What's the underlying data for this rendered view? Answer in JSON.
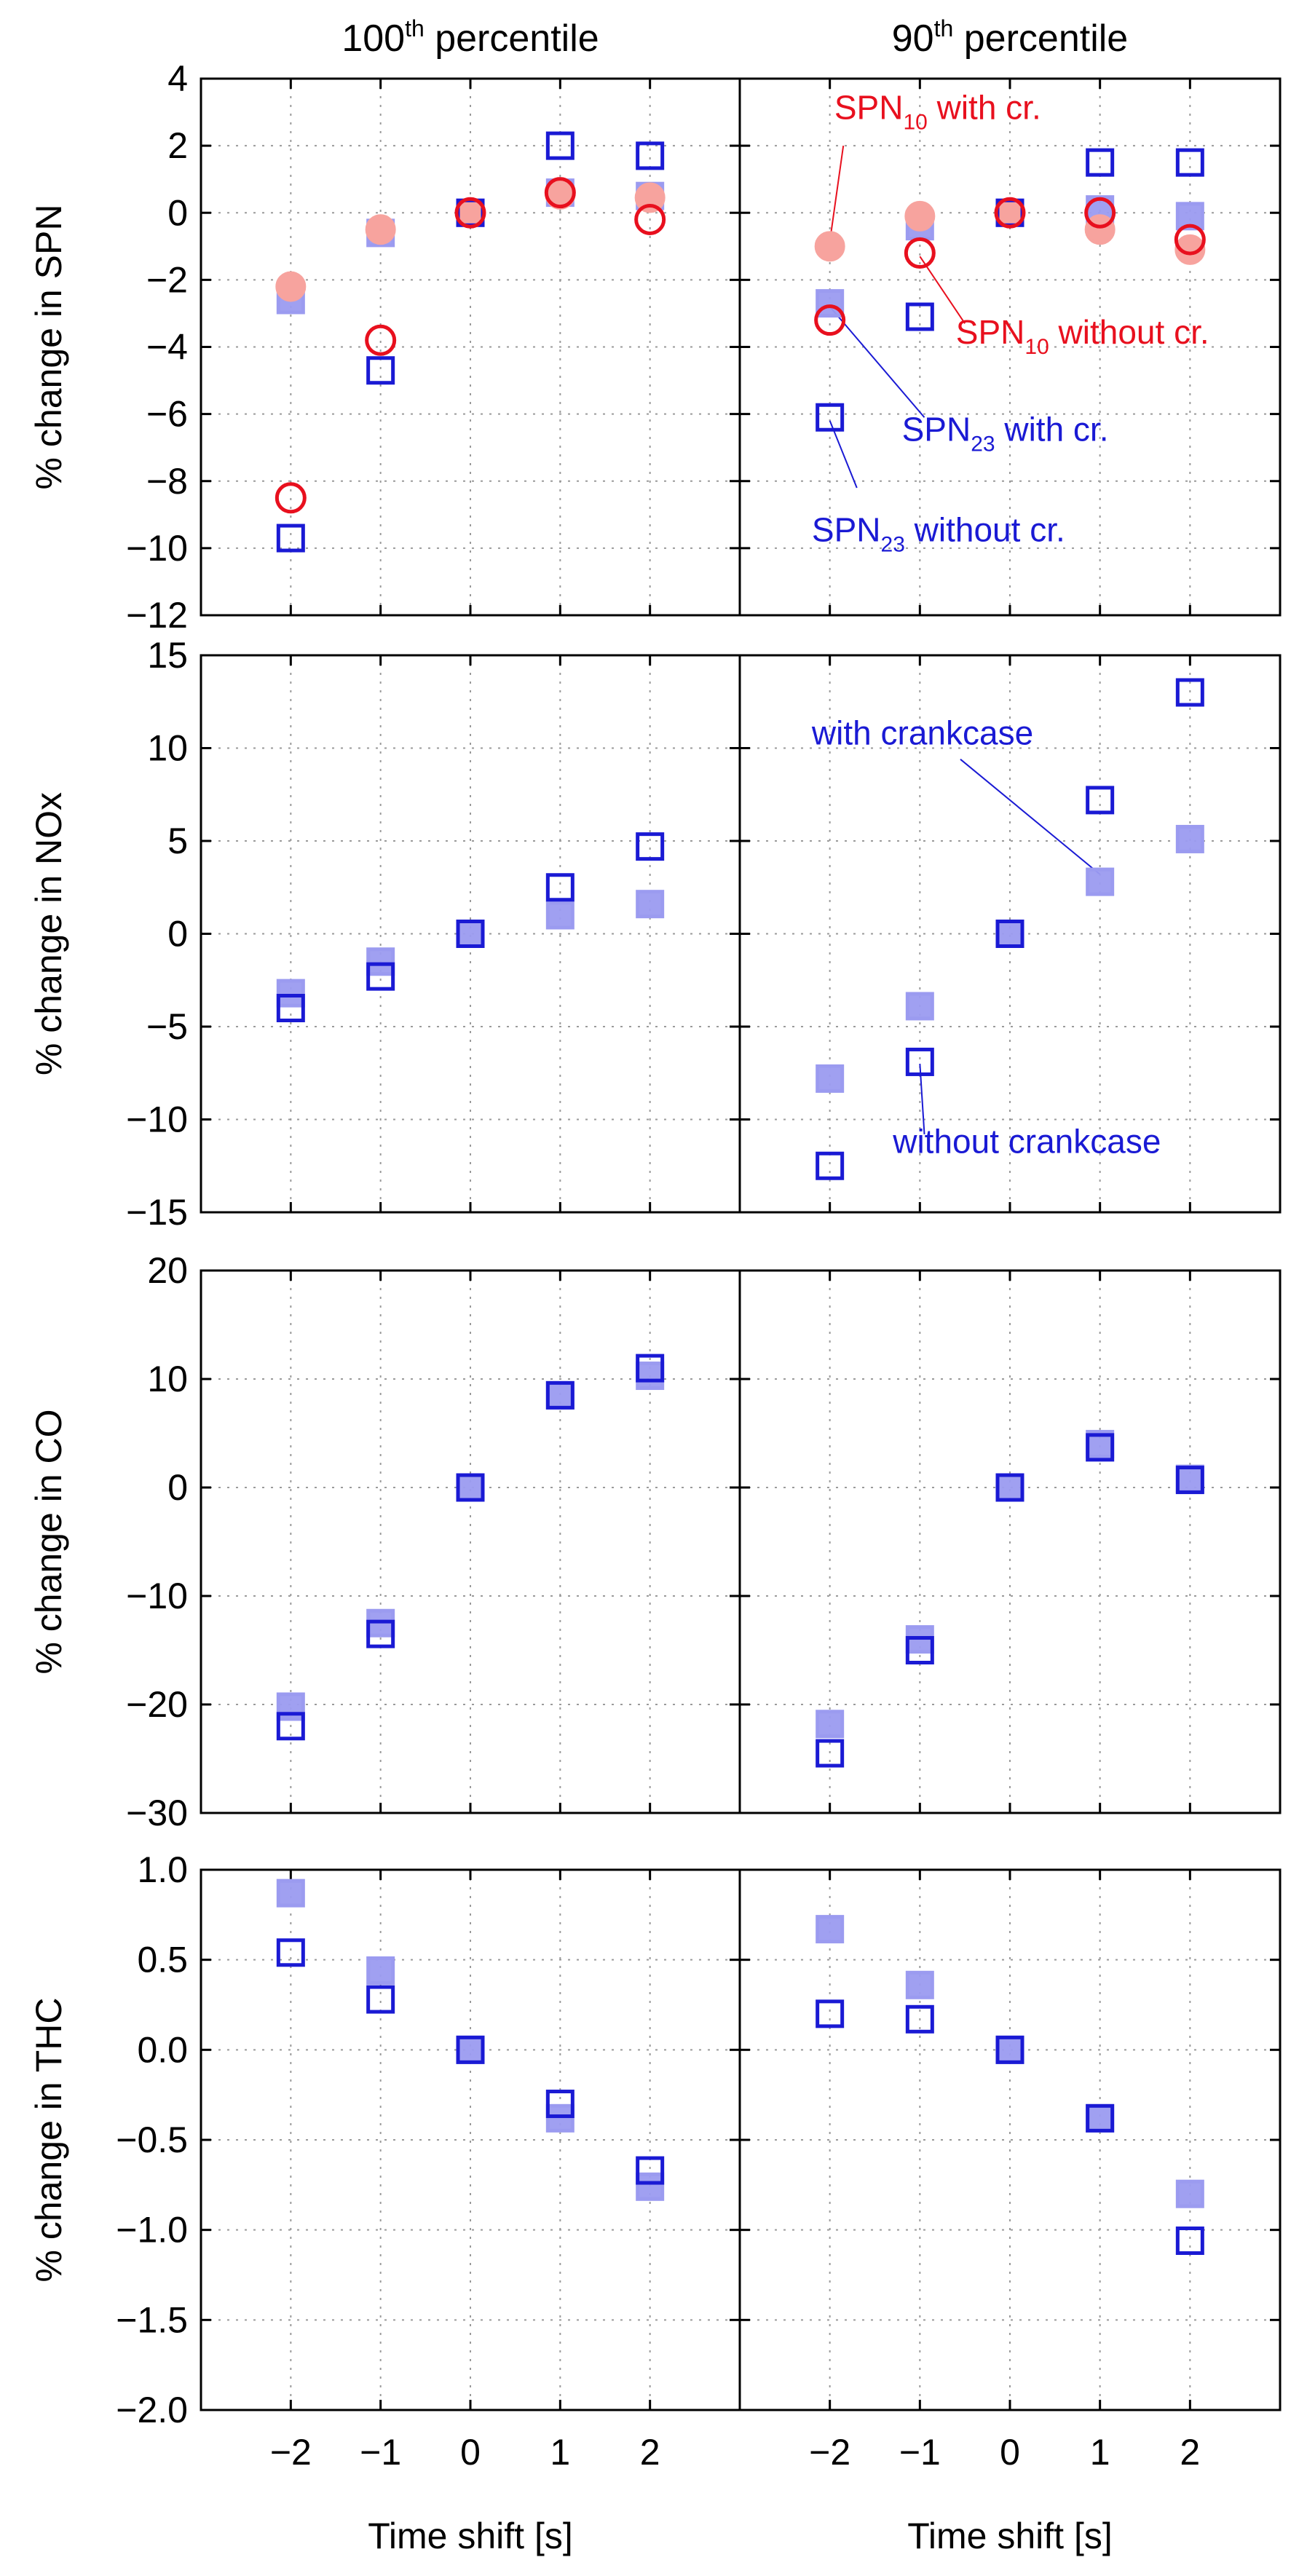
{
  "chart_data": {
    "type": "scatter",
    "x_label": "Time shift [s]",
    "x_ticks": [
      -2,
      -1,
      0,
      1,
      2
    ],
    "x_range": [
      -3,
      3
    ],
    "colors": {
      "red_open": "#e8101e",
      "red_filled": "#f7a39e",
      "blue_open": "#1a1ad4",
      "blue_filled": "#9b9bf0"
    },
    "columns": [
      {
        "title_main": "100",
        "title_sup": "th",
        "title_rest": " percentile"
      },
      {
        "title_main": "90",
        "title_sup": "th",
        "title_rest": " percentile"
      }
    ],
    "rows": [
      {
        "ylabel": "% change in SPN",
        "ylim": [
          -12,
          4
        ],
        "yticks": [
          -12,
          -10,
          -8,
          -6,
          -4,
          -2,
          0,
          2,
          4
        ],
        "ytick_labels": [
          "−12",
          "−10",
          "−8",
          "−6",
          "−4",
          "−2",
          "0",
          "2",
          "4"
        ],
        "panels": [
          {
            "series": [
              {
                "name": "SPN23 with cr.",
                "marker": "square",
                "style": "filled",
                "color": "blue_filled",
                "x": [
                  -2,
                  -1,
                  0,
                  1,
                  2
                ],
                "y": [
                  -2.6,
                  -0.6,
                  0,
                  0.6,
                  0.5
                ]
              },
              {
                "name": "SPN10 with cr.",
                "marker": "circle",
                "style": "filled",
                "color": "red_filled",
                "x": [
                  -2,
                  -1,
                  0,
                  1,
                  2
                ],
                "y": [
                  -2.2,
                  -0.5,
                  0,
                  0.55,
                  0.45
                ]
              },
              {
                "name": "SPN23 without cr.",
                "marker": "square",
                "style": "open",
                "color": "blue_open",
                "x": [
                  -2,
                  -1,
                  0,
                  1,
                  2
                ],
                "y": [
                  -9.7,
                  -4.7,
                  0,
                  2.0,
                  1.7
                ]
              },
              {
                "name": "SPN10 without cr.",
                "marker": "circle",
                "style": "open",
                "color": "red_open",
                "x": [
                  -2,
                  -1,
                  0,
                  1,
                  2
                ],
                "y": [
                  -8.5,
                  -3.8,
                  0,
                  0.6,
                  -0.2
                ]
              }
            ]
          },
          {
            "series": [
              {
                "name": "SPN23 with cr.",
                "marker": "square",
                "style": "filled",
                "color": "blue_filled",
                "x": [
                  -2,
                  -1,
                  0,
                  1,
                  2
                ],
                "y": [
                  -2.7,
                  -0.4,
                  0,
                  0.1,
                  -0.1
                ]
              },
              {
                "name": "SPN10 with cr.",
                "marker": "circle",
                "style": "filled",
                "color": "red_filled",
                "x": [
                  -2,
                  -1,
                  0,
                  1,
                  2
                ],
                "y": [
                  -1.0,
                  -0.1,
                  0,
                  -0.5,
                  -1.1
                ]
              },
              {
                "name": "SPN23 without cr.",
                "marker": "square",
                "style": "open",
                "color": "blue_open",
                "x": [
                  -2,
                  -1,
                  0,
                  1,
                  2
                ],
                "y": [
                  -6.1,
                  -3.1,
                  0,
                  1.5,
                  1.5
                ]
              },
              {
                "name": "SPN10 without cr.",
                "marker": "circle",
                "style": "open",
                "color": "red_open",
                "x": [
                  -2,
                  -1,
                  0,
                  1,
                  2
                ],
                "y": [
                  -3.2,
                  -1.2,
                  0,
                  0.0,
                  -0.8
                ]
              }
            ],
            "annotations": [
              {
                "main": "SPN",
                "sub": "10",
                "rest": " with cr.",
                "color": "red_open",
                "text_x": -1.95,
                "text_y": 2.8,
                "line_from": [
                  -1.85,
                  2.0
                ],
                "line_to": [
                  -2.0,
                  -0.85
                ]
              },
              {
                "main": "SPN",
                "sub": "10",
                "rest": " without cr.",
                "color": "red_open",
                "text_x": -0.6,
                "text_y": -3.9,
                "line_from": [
                  -0.5,
                  -3.3
                ],
                "line_to": [
                  -1.0,
                  -1.3
                ]
              },
              {
                "main": "SPN",
                "sub": "23",
                "rest": " with cr.",
                "color": "blue_open",
                "text_x": -1.2,
                "text_y": -6.8,
                "line_from": [
                  -0.95,
                  -6.1
                ],
                "line_to": [
                  -2.0,
                  -2.8
                ]
              },
              {
                "main": "SPN",
                "sub": "23",
                "rest": " without cr.",
                "color": "blue_open",
                "text_x": -2.2,
                "text_y": -9.8,
                "line_from": [
                  -1.7,
                  -8.2
                ],
                "line_to": [
                  -2.0,
                  -6.2
                ]
              }
            ]
          }
        ]
      },
      {
        "ylabel": "% change in NOx",
        "ylim": [
          -15,
          15
        ],
        "yticks": [
          -15,
          -10,
          -5,
          0,
          5,
          10,
          15
        ],
        "ytick_labels": [
          "−15",
          "−10",
          "−5",
          "0",
          "5",
          "10",
          "15"
        ],
        "panels": [
          {
            "series": [
              {
                "name": "with crankcase",
                "marker": "square",
                "style": "filled",
                "color": "blue_filled",
                "x": [
                  -2,
                  -1,
                  0,
                  1,
                  2
                ],
                "y": [
                  -3.2,
                  -1.5,
                  0,
                  1.0,
                  1.6
                ]
              },
              {
                "name": "without crankcase",
                "marker": "square",
                "style": "open",
                "color": "blue_open",
                "x": [
                  -2,
                  -1,
                  0,
                  1,
                  2
                ],
                "y": [
                  -4.0,
                  -2.3,
                  0,
                  2.5,
                  4.7
                ]
              }
            ]
          },
          {
            "series": [
              {
                "name": "with crankcase",
                "marker": "square",
                "style": "filled",
                "color": "blue_filled",
                "x": [
                  -2,
                  -1,
                  0,
                  1,
                  2
                ],
                "y": [
                  -7.8,
                  -3.9,
                  0,
                  2.8,
                  5.1
                ]
              },
              {
                "name": "without crankcase",
                "marker": "square",
                "style": "open",
                "color": "blue_open",
                "x": [
                  -2,
                  -1,
                  0,
                  1,
                  2
                ],
                "y": [
                  -12.5,
                  -6.9,
                  0,
                  7.2,
                  13.0
                ]
              }
            ],
            "annotations": [
              {
                "main": "with crankcase",
                "sub": "",
                "rest": "",
                "color": "blue_open",
                "text_x": -2.2,
                "text_y": 10.2,
                "line_from": [
                  -0.55,
                  9.4
                ],
                "line_to": [
                  1.0,
                  3.2
                ]
              },
              {
                "main": "without crankcase",
                "sub": "",
                "rest": "",
                "color": "blue_open",
                "text_x": -1.3,
                "text_y": -11.8,
                "line_from": [
                  -0.95,
                  -10.8
                ],
                "line_to": [
                  -1.0,
                  -7.0
                ]
              }
            ]
          }
        ]
      },
      {
        "ylabel": "% change in CO",
        "ylim": [
          -30,
          20
        ],
        "yticks": [
          -30,
          -20,
          -10,
          0,
          10,
          20
        ],
        "ytick_labels": [
          "−30",
          "−20",
          "−10",
          "0",
          "10",
          "20"
        ],
        "panels": [
          {
            "series": [
              {
                "name": "with crankcase",
                "marker": "square",
                "style": "filled",
                "color": "blue_filled",
                "x": [
                  -2,
                  -1,
                  0,
                  1,
                  2
                ],
                "y": [
                  -20.2,
                  -12.5,
                  0,
                  8.5,
                  10.3
                ]
              },
              {
                "name": "without crankcase",
                "marker": "square",
                "style": "open",
                "color": "blue_open",
                "x": [
                  -2,
                  -1,
                  0,
                  1,
                  2
                ],
                "y": [
                  -22.0,
                  -13.5,
                  0,
                  8.5,
                  11.0
                ]
              }
            ]
          },
          {
            "series": [
              {
                "name": "with crankcase",
                "marker": "square",
                "style": "filled",
                "color": "blue_filled",
                "x": [
                  -2,
                  -1,
                  0,
                  1,
                  2
                ],
                "y": [
                  -21.8,
                  -14.0,
                  0,
                  4.0,
                  0.8
                ]
              },
              {
                "name": "without crankcase",
                "marker": "square",
                "style": "open",
                "color": "blue_open",
                "x": [
                  -2,
                  -1,
                  0,
                  1,
                  2
                ],
                "y": [
                  -24.5,
                  -15.0,
                  0,
                  3.7,
                  0.7
                ]
              }
            ]
          }
        ]
      },
      {
        "ylabel": "% change in THC",
        "ylim": [
          -2.0,
          1.0
        ],
        "yticks": [
          -2.0,
          -1.5,
          -1.0,
          -0.5,
          0.0,
          0.5,
          1.0
        ],
        "ytick_labels": [
          "−2.0",
          "−1.5",
          "−1.0",
          "−0.5",
          "0.0",
          "0.5",
          "1.0"
        ],
        "panels": [
          {
            "series": [
              {
                "name": "with crankcase",
                "marker": "square",
                "style": "filled",
                "color": "blue_filled",
                "x": [
                  -2,
                  -1,
                  0,
                  1,
                  2
                ],
                "y": [
                  0.87,
                  0.44,
                  0,
                  -0.38,
                  -0.76
                ]
              },
              {
                "name": "without crankcase",
                "marker": "square",
                "style": "open",
                "color": "blue_open",
                "x": [
                  -2,
                  -1,
                  0,
                  1,
                  2
                ],
                "y": [
                  0.54,
                  0.28,
                  0,
                  -0.3,
                  -0.67
                ]
              }
            ]
          },
          {
            "series": [
              {
                "name": "with crankcase",
                "marker": "square",
                "style": "filled",
                "color": "blue_filled",
                "x": [
                  -2,
                  -1,
                  0,
                  1,
                  2
                ],
                "y": [
                  0.67,
                  0.36,
                  0,
                  -0.38,
                  -0.8
                ]
              },
              {
                "name": "without crankcase",
                "marker": "square",
                "style": "open",
                "color": "blue_open",
                "x": [
                  -2,
                  -1,
                  0,
                  1,
                  2
                ],
                "y": [
                  0.2,
                  0.17,
                  0,
                  -0.38,
                  -1.06
                ]
              }
            ]
          }
        ]
      }
    ]
  }
}
